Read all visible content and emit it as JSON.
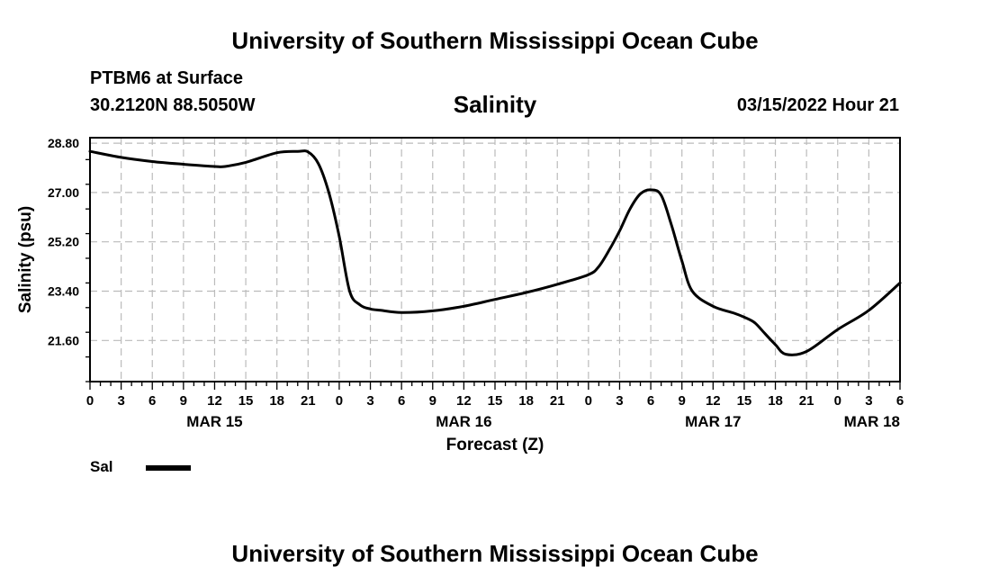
{
  "header": {
    "title": "University of Southern Mississippi Ocean Cube",
    "station": "PTBM6 at Surface",
    "coords": "30.2120N  88.5050W",
    "chart_title": "Salinity",
    "datetime": "03/15/2022 Hour 21"
  },
  "footer": {
    "title": "University of Southern Mississippi Ocean Cube"
  },
  "legend": {
    "label": "Sal",
    "color": "#000000"
  },
  "chart_data": {
    "type": "line",
    "title": "Salinity",
    "xlabel": "Forecast (Z)",
    "ylabel": "Salinity (psu)",
    "xlim": [
      0,
      78
    ],
    "ylim": [
      20.1,
      29.0
    ],
    "yticks": [
      28.8,
      27.0,
      25.2,
      23.4,
      21.6
    ],
    "ytick_labels": [
      "28.80",
      "27.00",
      "25.20",
      "23.40",
      "21.60"
    ],
    "xtick_labels": [
      "0",
      "3",
      "6",
      "9",
      "12",
      "15",
      "18",
      "21",
      "0",
      "3",
      "6",
      "9",
      "12",
      "15",
      "18",
      "21",
      "0",
      "3",
      "6",
      "9",
      "12",
      "15",
      "18",
      "21",
      "0",
      "3",
      "6"
    ],
    "date_labels": [
      {
        "hour": 12,
        "label": "MAR 15"
      },
      {
        "hour": 36,
        "label": "MAR 16"
      },
      {
        "hour": 60,
        "label": "MAR 17"
      },
      {
        "hour": 78,
        "label": "MAR 18"
      }
    ],
    "grid": true,
    "series": [
      {
        "name": "Sal",
        "x": [
          0,
          3,
          6,
          9,
          12,
          13,
          15,
          18,
          20,
          21,
          22,
          23,
          24,
          25,
          26,
          27,
          28,
          30,
          33,
          36,
          39,
          42,
          45,
          48,
          49,
          50,
          51,
          52,
          53,
          54,
          55,
          56,
          57,
          58,
          60,
          62,
          63,
          64,
          65,
          66,
          67,
          69,
          72,
          75,
          78
        ],
        "y": [
          28.5,
          28.28,
          28.13,
          28.03,
          27.95,
          27.95,
          28.1,
          28.45,
          28.5,
          28.48,
          28.05,
          27.0,
          25.4,
          23.4,
          22.9,
          22.75,
          22.7,
          22.62,
          22.68,
          22.85,
          23.1,
          23.35,
          23.65,
          24.0,
          24.3,
          24.9,
          25.6,
          26.4,
          26.95,
          27.1,
          26.9,
          25.8,
          24.5,
          23.4,
          22.85,
          22.6,
          22.45,
          22.25,
          21.85,
          21.45,
          21.1,
          21.2,
          22.0,
          22.7,
          23.7
        ]
      }
    ]
  }
}
